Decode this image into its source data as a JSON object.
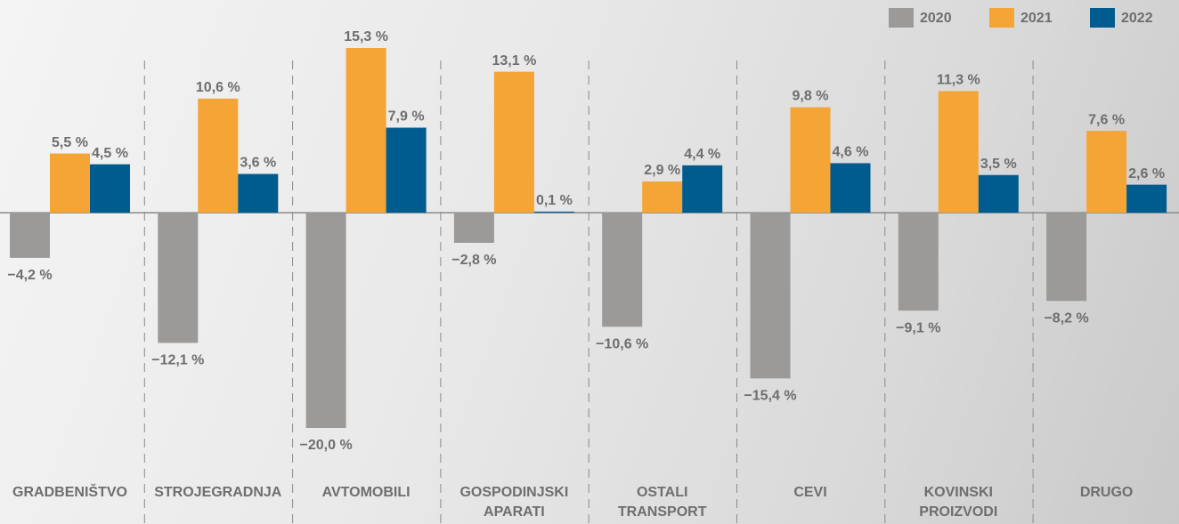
{
  "chart_data": {
    "type": "bar",
    "categories": [
      "GRADBENIŠTVO",
      "STROJEGRADNJA",
      "AVTOMOBILI",
      "GOSPODINJSKI\nAPARATI",
      "OSTALI\nTRANSPORT",
      "CEVI",
      "KOVINSKI\nPROIZVODI",
      "DRUGO"
    ],
    "series": [
      {
        "name": "2020",
        "color": "#9b9a98",
        "values": [
          -4.2,
          -12.1,
          -20.0,
          -2.8,
          -10.6,
          -15.4,
          -9.1,
          -8.2
        ],
        "value_labels": [
          "−4,2 %",
          "−12,1 %",
          "−20,0 %",
          "−2,8 %",
          "−10,6 %",
          "−15,4 %",
          "−9,1 %",
          "−8,2 %"
        ]
      },
      {
        "name": "2021",
        "color": "#f5a535",
        "values": [
          5.5,
          10.6,
          15.3,
          13.1,
          2.9,
          9.8,
          11.3,
          7.6
        ],
        "value_labels": [
          "5,5 %",
          "10,6 %",
          "15,3 %",
          "13,1 %",
          "2,9 %",
          "9,8 %",
          "11,3 %",
          "7,6 %"
        ]
      },
      {
        "name": "2022",
        "color": "#005b8f",
        "values": [
          4.5,
          3.6,
          7.9,
          0.1,
          4.4,
          4.6,
          3.5,
          2.6
        ],
        "value_labels": [
          "4,5 %",
          "3,6 %",
          "7,9 %",
          "0,1 %",
          "4,4 %",
          "4,6 %",
          "3,5 %",
          "2,6 %"
        ]
      }
    ],
    "legend": "top-right"
  }
}
